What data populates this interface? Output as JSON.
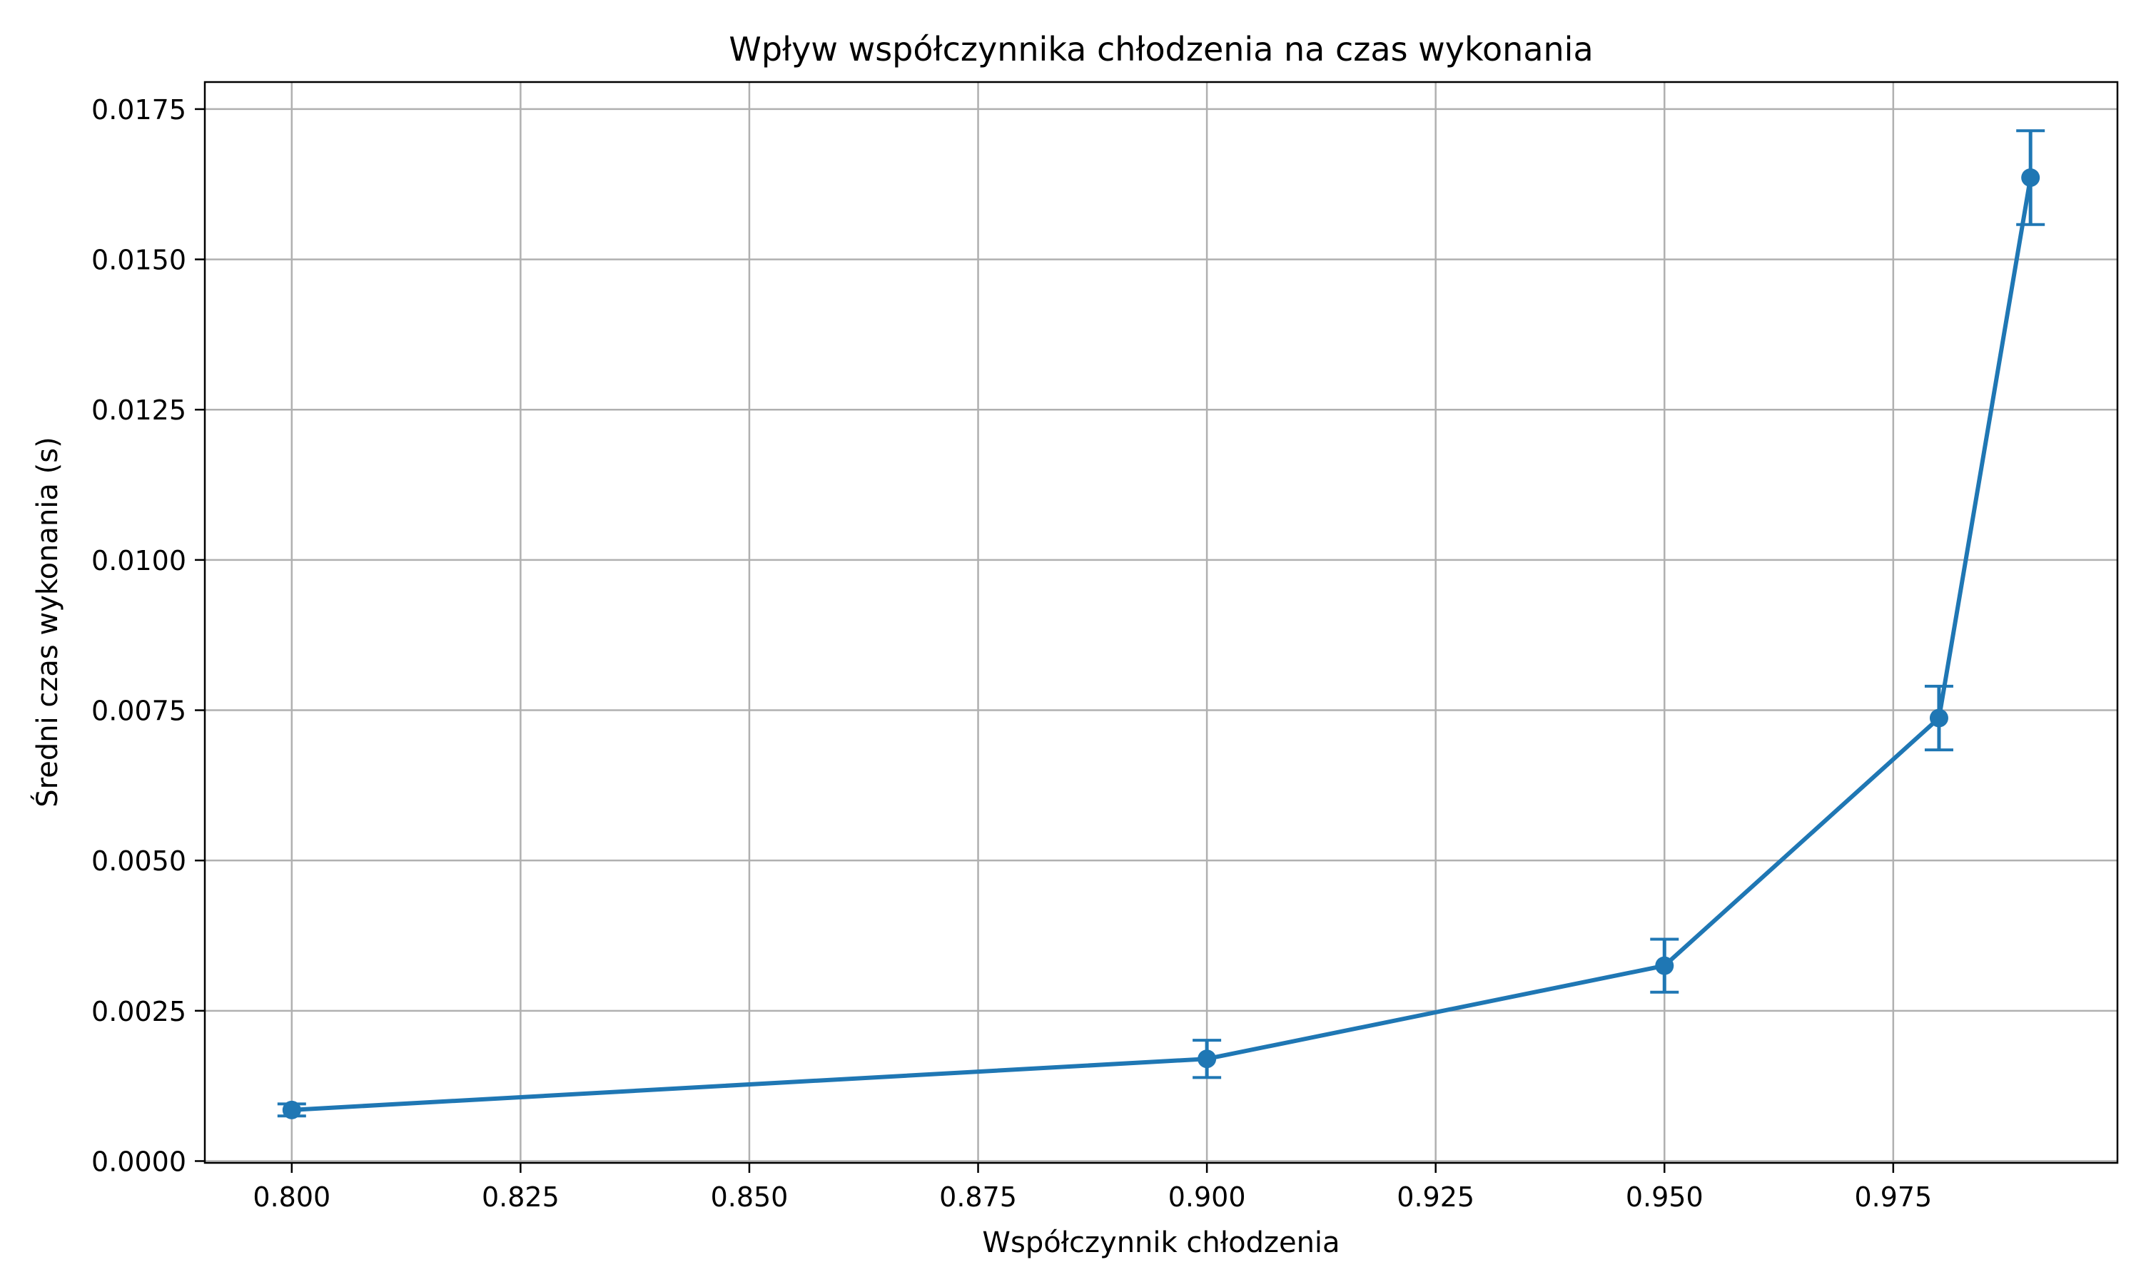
{
  "chart_data": {
    "type": "line",
    "title": "Wpływ współczynnika chłodzenia na czas wykonania",
    "xlabel": "Współczynnik chłodzenia",
    "ylabel": "Średni czas wykonania (s)",
    "xlim": [
      0.7905,
      0.9995
    ],
    "ylim": [
      -3e-05,
      0.01795
    ],
    "xticks": [
      0.8,
      0.825,
      0.85,
      0.875,
      0.9,
      0.925,
      0.95,
      0.975
    ],
    "xtick_labels": [
      "0.800",
      "0.825",
      "0.850",
      "0.875",
      "0.900",
      "0.925",
      "0.950",
      "0.975"
    ],
    "yticks": [
      0.0,
      0.0025,
      0.005,
      0.0075,
      0.01,
      0.0125,
      0.015,
      0.0175
    ],
    "ytick_labels": [
      "0.0000",
      "0.0025",
      "0.0050",
      "0.0075",
      "0.0100",
      "0.0125",
      "0.0150",
      "0.0175"
    ],
    "grid": true,
    "color": "#1f77b4",
    "series": [
      {
        "x": [
          0.8,
          0.9,
          0.95,
          0.98,
          0.99
        ],
        "y": [
          0.00085,
          0.0017,
          0.00325,
          0.00737,
          0.01636
        ],
        "yerr": [
          0.0001,
          0.00031,
          0.00044,
          0.00053,
          0.00078
        ]
      }
    ]
  }
}
